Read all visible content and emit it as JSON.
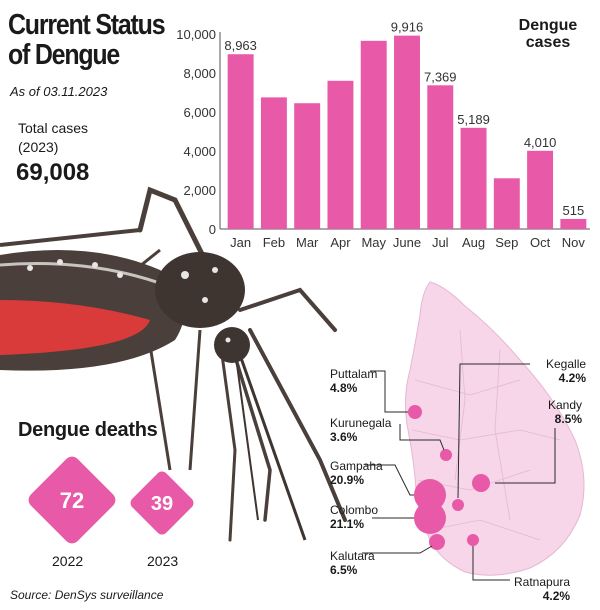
{
  "title_lines": [
    "Current Status",
    "of Dengue"
  ],
  "as_of": "As of 03.11.2023",
  "total_label": "Total cases (2023)",
  "total_value": "69,008",
  "chart_data": {
    "type": "bar",
    "title": "Dengue cases",
    "categories": [
      "Jan",
      "Feb",
      "Mar",
      "Apr",
      "May",
      "June",
      "Jul",
      "Aug",
      "Sep",
      "Oct",
      "Nov"
    ],
    "values": [
      8963,
      6750,
      6450,
      7600,
      9650,
      9916,
      7369,
      5189,
      2600,
      4010,
      515
    ],
    "data_labels": {
      "Jan": "8,963",
      "June": "9,916",
      "Jul": "7,369",
      "Aug": "5,189",
      "Oct": "4,010",
      "Nov": "515"
    },
    "yticks": [
      "0",
      "2,000",
      "4,000",
      "6,000",
      "8,000",
      "10,000"
    ],
    "ylim": [
      0,
      10000
    ],
    "bar_color": "#e85aa8"
  },
  "deaths": {
    "title": "Dengue deaths",
    "items": [
      {
        "year": "2022",
        "value": "72"
      },
      {
        "year": "2023",
        "value": "39"
      }
    ],
    "color": "#e85aa8"
  },
  "districts": [
    {
      "name": "Puttalam",
      "pct": "4.8%"
    },
    {
      "name": "Kurunegala",
      "pct": "3.6%"
    },
    {
      "name": "Gampaha",
      "pct": "20.9%"
    },
    {
      "name": "Colombo",
      "pct": "21.1%"
    },
    {
      "name": "Kalutara",
      "pct": "6.5%"
    },
    {
      "name": "Kegalle",
      "pct": "4.2%"
    },
    {
      "name": "Kandy",
      "pct": "8.5%"
    },
    {
      "name": "Ratnapura",
      "pct": "4.2%"
    }
  ],
  "map_color": "#f6d6e8",
  "bubble_color": "#e85aa8",
  "source": "Source: DenSys surveillance"
}
